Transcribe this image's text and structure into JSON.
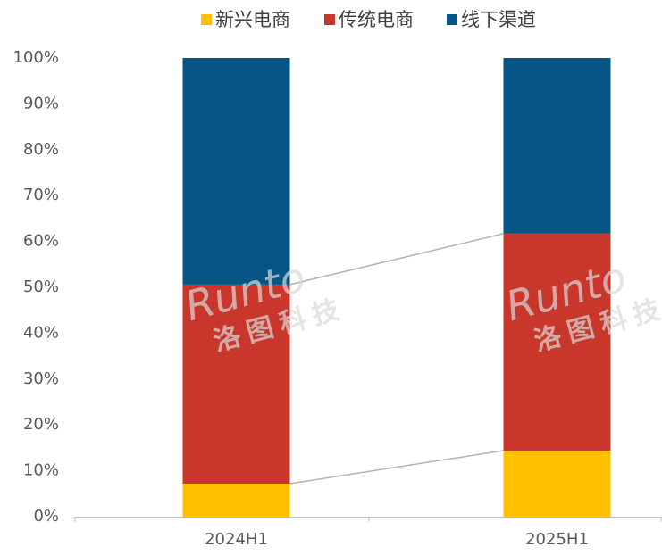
{
  "chart_data": {
    "type": "stacked_bar_100",
    "categories": [
      "2024H1",
      "2025H1"
    ],
    "series": [
      {
        "name": "新兴电商",
        "color": "#FFC000",
        "values": [
          7.2,
          14.4
        ]
      },
      {
        "name": "传统电商",
        "color": "#C9372C",
        "values": [
          43.4,
          47.3
        ]
      },
      {
        "name": "线下渠道",
        "color": "#075487",
        "values": [
          49.4,
          38.3
        ]
      }
    ],
    "ylim": [
      0,
      100
    ],
    "yticks": [
      {
        "value": 0,
        "label": "0%"
      },
      {
        "value": 10,
        "label": "10%"
      },
      {
        "value": 20,
        "label": "20%"
      },
      {
        "value": 30,
        "label": "30%"
      },
      {
        "value": 40,
        "label": "40%"
      },
      {
        "value": 50,
        "label": "50%"
      },
      {
        "value": 60,
        "label": "60%"
      },
      {
        "value": 70,
        "label": "70%"
      },
      {
        "value": 80,
        "label": "80%"
      },
      {
        "value": 90,
        "label": "90%"
      },
      {
        "value": 100,
        "label": "100%"
      }
    ],
    "legend_position": "top",
    "watermark": {
      "brand": "Runto",
      "company": "洛图科技"
    }
  }
}
